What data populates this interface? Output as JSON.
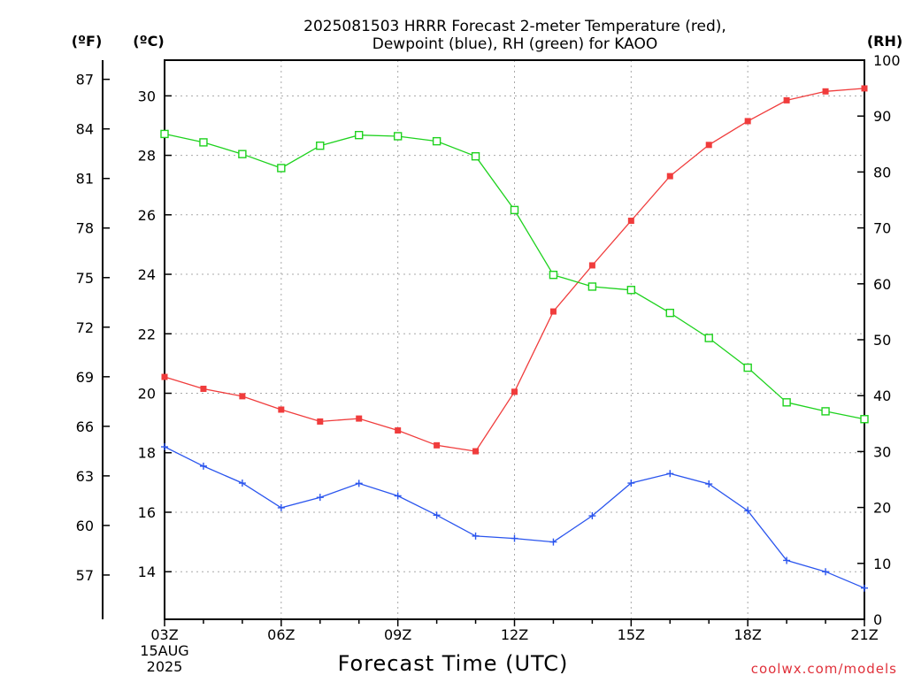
{
  "title": {
    "line1": "2025081503 HRRR Forecast 2-meter Temperature (red),",
    "line2": "Dewpoint (blue), RH (green) for KAOO"
  },
  "axis_units": {
    "fahrenheit": "(ºF)",
    "celsius": "(ºC)",
    "rh": "(RH)"
  },
  "date_label": {
    "line1": "15AUG",
    "line2": "2025"
  },
  "credit": {
    "text": "coolwx.com/models",
    "color": "#e0303a"
  },
  "chart_data": {
    "type": "line",
    "title": "2025081503 HRRR Forecast 2-meter Temperature (red), Dewpoint (blue), RH (green) for KAOO",
    "xlabel": "Forecast Time (UTC)",
    "ylabel": "(ºC)",
    "ylabel_secondary_left": "(ºF)",
    "ylabel_right": "(RH)",
    "x": [
      "03Z",
      "04Z",
      "05Z",
      "06Z",
      "07Z",
      "08Z",
      "09Z",
      "10Z",
      "11Z",
      "12Z",
      "13Z",
      "14Z",
      "15Z",
      "16Z",
      "17Z",
      "18Z",
      "19Z",
      "20Z",
      "21Z"
    ],
    "x_tick_labels": [
      "03Z",
      "06Z",
      "09Z",
      "12Z",
      "15Z",
      "18Z",
      "21Z"
    ],
    "xlim": [
      "03Z",
      "21Z"
    ],
    "ylim": [
      12.4,
      31.2
    ],
    "ylim_right": [
      0,
      100
    ],
    "yticks_celsius": [
      14,
      16,
      18,
      20,
      22,
      24,
      26,
      28,
      30
    ],
    "yticks_fahrenheit": [
      57,
      60,
      63,
      66,
      69,
      72,
      75,
      78,
      81,
      84,
      87
    ],
    "yticks_rh": [
      0,
      10,
      20,
      30,
      40,
      50,
      60,
      70,
      80,
      90,
      100
    ],
    "grid": true,
    "series": [
      {
        "name": "Temperature (red)",
        "axis": "celsius",
        "color": "#f03c3c",
        "marker": "filled-square",
        "values": [
          20.55,
          20.15,
          19.9,
          19.45,
          19.05,
          19.15,
          18.75,
          18.25,
          18.05,
          20.05,
          22.75,
          24.3,
          25.8,
          27.3,
          28.35,
          29.15,
          29.85,
          30.15,
          30.25
        ]
      },
      {
        "name": "Dewpoint (blue)",
        "axis": "celsius",
        "color": "#2a55ee",
        "marker": "plus",
        "values": [
          18.2,
          17.55,
          16.98,
          16.15,
          16.5,
          16.97,
          16.55,
          15.9,
          15.2,
          15.12,
          15.0,
          15.88,
          16.98,
          17.3,
          16.95,
          16.05,
          14.38,
          14.0,
          13.45
        ]
      },
      {
        "name": "RH (green)",
        "axis": "rh",
        "color": "#1ed21e",
        "marker": "open-square",
        "values": [
          86.8,
          85.3,
          83.2,
          80.7,
          84.7,
          86.6,
          86.4,
          85.5,
          82.8,
          73.2,
          61.6,
          59.5,
          58.9,
          54.8,
          50.3,
          45.0,
          38.8,
          37.2,
          35.8
        ]
      }
    ]
  }
}
